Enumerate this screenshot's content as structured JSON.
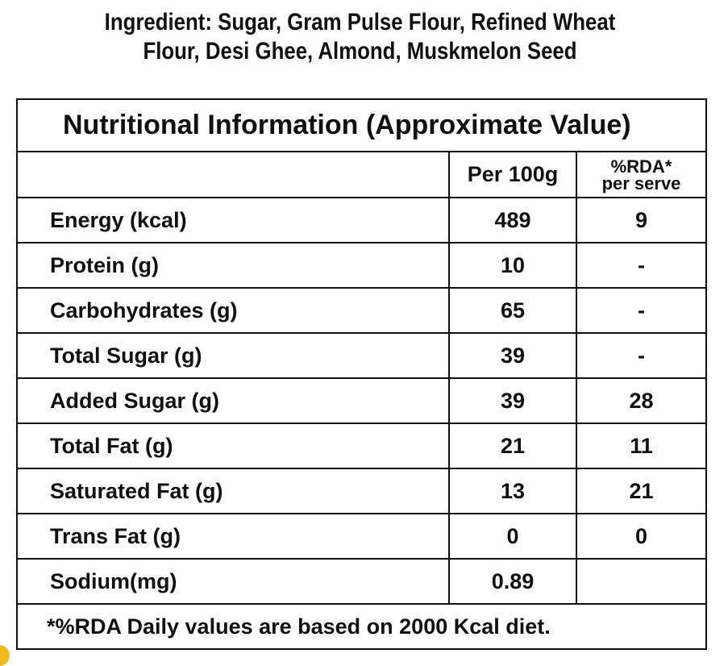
{
  "ingredients": {
    "line1": "Ingredient: Sugar, Gram Pulse Flour, Refined Wheat",
    "line2": "Flour, Desi Ghee, Almond, Muskmelon Seed"
  },
  "table": {
    "title": "Nutritional Information (Approximate Value)",
    "col_per": "Per 100g",
    "col_rda_line1": "%RDA*",
    "col_rda_line2": "per serve",
    "rows": [
      {
        "name": "Energy (kcal)",
        "per100g": "489",
        "rda": "9"
      },
      {
        "name": "Protein (g)",
        "per100g": "10",
        "rda": "-"
      },
      {
        "name": "Carbohydrates (g)",
        "per100g": "65",
        "rda": "-"
      },
      {
        "name": "Total Sugar (g)",
        "per100g": "39",
        "rda": "-"
      },
      {
        "name": "Added Sugar (g)",
        "per100g": "39",
        "rda": "28"
      },
      {
        "name": "Total Fat (g)",
        "per100g": "21",
        "rda": "11"
      },
      {
        "name": "Saturated Fat (g)",
        "per100g": "13",
        "rda": "21"
      },
      {
        "name": "Trans Fat (g)",
        "per100g": "0",
        "rda": "0"
      },
      {
        "name": "Sodium(mg)",
        "per100g": "0.89",
        "rda": ""
      }
    ],
    "footnote": "*%RDA Daily values are based on 2000 Kcal diet."
  },
  "colors": {
    "text": "#111111",
    "border": "#111111",
    "accent": "#f2b81c"
  }
}
